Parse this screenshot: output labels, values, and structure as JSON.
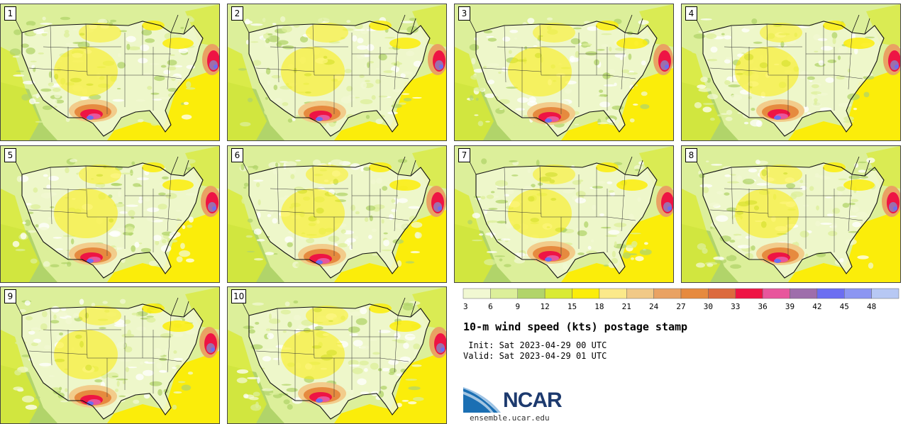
{
  "panels": [
    {
      "label": "1"
    },
    {
      "label": "2"
    },
    {
      "label": "3"
    },
    {
      "label": "4"
    },
    {
      "label": "5"
    },
    {
      "label": "6"
    },
    {
      "label": "7"
    },
    {
      "label": "8"
    },
    {
      "label": "9"
    },
    {
      "label": "10"
    }
  ],
  "colorbar": {
    "ticks": [
      "3",
      "6",
      "9",
      "12",
      "15",
      "18",
      "21",
      "24",
      "27",
      "30",
      "33",
      "36",
      "39",
      "42",
      "45",
      "48"
    ],
    "colors": [
      "#f1f8d2",
      "#dcef9a",
      "#b1d46a",
      "#d9ea34",
      "#fbed0a",
      "#fbe98a",
      "#f1c987",
      "#e9a263",
      "#e68a3f",
      "#dc6a3e",
      "#ee1444",
      "#e8569c",
      "#9e6eab",
      "#6c6ef1",
      "#8c96f2",
      "#b7c8f4"
    ]
  },
  "title": "10-m wind speed (kts) postage stamp",
  "init": " Init: Sat 2023-04-29 00 UTC",
  "valid": "Valid: Sat 2023-04-29 01 UTC",
  "logo": {
    "text": "NCAR",
    "site": "ensemble.ucar.edu",
    "color": "#1b6fb3"
  }
}
